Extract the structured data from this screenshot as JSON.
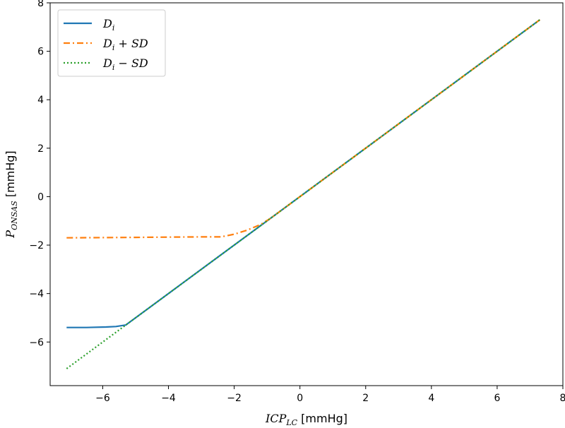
{
  "chart_data": {
    "type": "line",
    "xlim": [
      -7.6,
      8.0
    ],
    "ylim": [
      -7.8,
      8.0
    ],
    "x_ticks": [
      -6,
      -4,
      -2,
      0,
      2,
      4,
      6,
      8
    ],
    "y_ticks": [
      -6,
      -4,
      -2,
      0,
      2,
      4,
      6,
      8
    ],
    "x_tick_labels": [
      "−6",
      "−4",
      "−2",
      "0",
      "2",
      "4",
      "6",
      "8"
    ],
    "y_tick_labels": [
      "−6",
      "−4",
      "−2",
      "0",
      "2",
      "4",
      "6",
      "8"
    ],
    "xlabel": {
      "main": "ICP",
      "sub": "LC",
      "unit": " [mmHg]"
    },
    "ylabel": {
      "main": "P",
      "sub": "ONSAS",
      "unit": " [mmHg]"
    },
    "grid": false,
    "legend_position": "top-left",
    "series": [
      {
        "name": "D",
        "name_sub": "i",
        "name_suffix": "",
        "color": "#1f77b4",
        "style": "solid",
        "points": [
          [
            -7.1,
            -5.4
          ],
          [
            -6.5,
            -5.4
          ],
          [
            -5.9,
            -5.38
          ],
          [
            -5.6,
            -5.36
          ],
          [
            -5.3,
            -5.3
          ],
          [
            7.3,
            7.3
          ]
        ]
      },
      {
        "name": "D",
        "name_sub": "i",
        "name_suffix": " + SD",
        "color": "#ff7f0e",
        "style": "dashdot",
        "points": [
          [
            -7.1,
            -1.7
          ],
          [
            -6.0,
            -1.69
          ],
          [
            -5.0,
            -1.68
          ],
          [
            -4.0,
            -1.67
          ],
          [
            -3.0,
            -1.66
          ],
          [
            -2.4,
            -1.66
          ],
          [
            -2.0,
            -1.55
          ],
          [
            -1.6,
            -1.38
          ],
          [
            -1.2,
            -1.15
          ],
          [
            -0.9,
            -0.9
          ],
          [
            7.3,
            7.3
          ]
        ]
      },
      {
        "name": "D",
        "name_sub": "i",
        "name_suffix": " − SD",
        "color": "#2ca02c",
        "style": "dotted",
        "points": [
          [
            -7.1,
            -7.1
          ],
          [
            7.3,
            7.3
          ]
        ]
      }
    ]
  }
}
